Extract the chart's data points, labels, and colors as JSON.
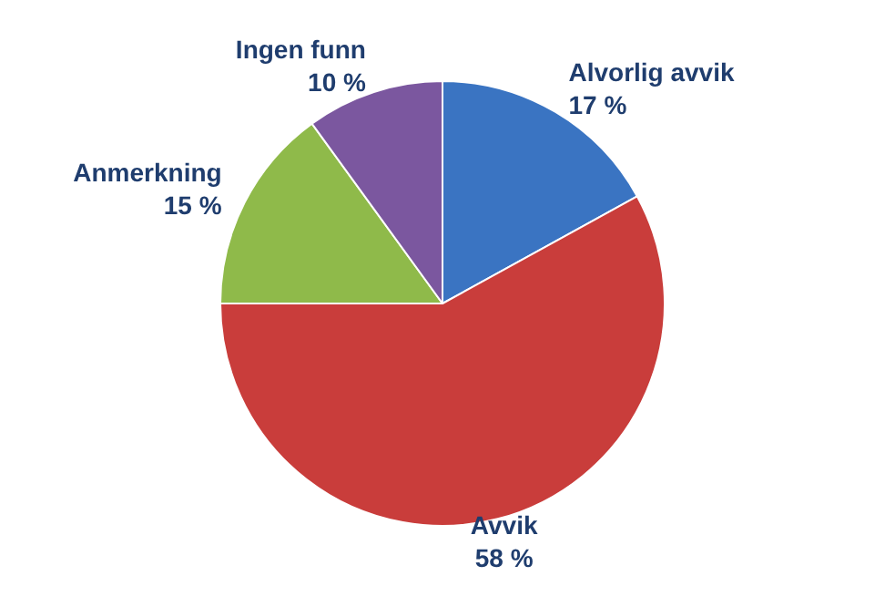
{
  "chart_data": {
    "type": "pie",
    "categories": [
      "Alvorlig avvik",
      "Avvik",
      "Anmerkning",
      "Ingen funn"
    ],
    "values": [
      17,
      58,
      15,
      10
    ],
    "colors": [
      "#3a74c2",
      "#c93d3b",
      "#8fba4a",
      "#7b579f"
    ],
    "value_labels": [
      "17 %",
      "58 %",
      "15 %",
      "10 %"
    ],
    "legend": false
  }
}
